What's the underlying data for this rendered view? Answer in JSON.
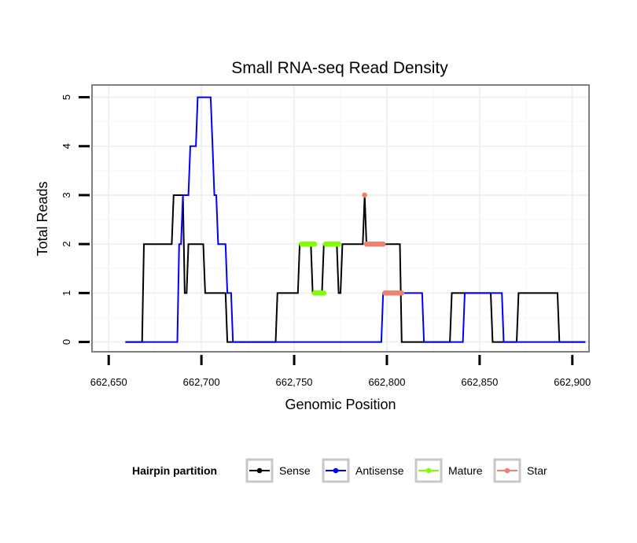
{
  "chart_data": {
    "type": "line",
    "title": "Small RNA-seq Read Density",
    "xlabel": "Genomic Position",
    "ylabel": "Total Reads",
    "xlim": [
      662641,
      662909
    ],
    "ylim": [
      -0.2,
      5.25
    ],
    "xticks": [
      662650,
      662700,
      662750,
      662800,
      662850,
      662900
    ],
    "xtick_labels": [
      "662,650",
      "662,700",
      "662,750",
      "662,800",
      "662,850",
      "662,900"
    ],
    "yticks": [
      0,
      1,
      2,
      3,
      4,
      5
    ],
    "ytick_labels": [
      "0",
      "1",
      "2",
      "3",
      "4",
      "5"
    ],
    "grid": true,
    "legend": {
      "title": "Hairpin partition",
      "placement": "bottom",
      "entries": [
        "Sense",
        "Antisense",
        "Mature",
        "Star"
      ]
    },
    "series": [
      {
        "name": "Sense",
        "color": "#000000",
        "x": [
          662659,
          662668,
          662669,
          662684,
          662685,
          662689,
          662690,
          662691,
          662692,
          662693,
          662694,
          662701,
          662702,
          662713,
          662714,
          662740,
          662741,
          662752,
          662753,
          662759,
          662760,
          662765,
          662766,
          662773,
          662774,
          662775,
          662776,
          662787,
          662788,
          662789,
          662790,
          662807,
          662808,
          662834,
          662835,
          662856,
          662857,
          662870,
          662871,
          662892,
          662893,
          662907
        ],
        "y": [
          0,
          0,
          2,
          2,
          3,
          3,
          3,
          1,
          1,
          2,
          2,
          2,
          1,
          1,
          0,
          0,
          1,
          1,
          2,
          2,
          1,
          1,
          2,
          2,
          1,
          1,
          2,
          2,
          3,
          2,
          2,
          2,
          0,
          0,
          1,
          1,
          0,
          0,
          1,
          1,
          0,
          0
        ]
      },
      {
        "name": "Antisense",
        "color": "#0000ff",
        "x": [
          662659,
          662687,
          662688,
          662689,
          662690,
          662691,
          662692,
          662693,
          662694,
          662695,
          662696,
          662697,
          662698,
          662699,
          662700,
          662705,
          662706,
          662707,
          662708,
          662709,
          662710,
          662713,
          662714,
          662716,
          662717,
          662720,
          662721,
          662797,
          662798,
          662819,
          662820,
          662841,
          662842,
          662862,
          662863,
          662907
        ],
        "y": [
          0,
          0,
          2,
          2,
          3,
          3,
          3,
          3,
          4,
          4,
          4,
          4,
          5,
          5,
          5,
          5,
          4,
          3,
          3,
          2,
          2,
          2,
          1,
          1,
          0,
          0,
          0,
          0,
          1,
          1,
          0,
          0,
          1,
          1,
          0,
          0
        ]
      },
      {
        "name": "Mature",
        "color": "#7fff00",
        "segments": [
          {
            "x": [
              662754,
              662761
            ],
            "y": 2
          },
          {
            "x": [
              662761,
              662766
            ],
            "y": 1
          },
          {
            "x": [
              662767,
              662774
            ],
            "y": 2
          }
        ]
      },
      {
        "name": "Star",
        "color": "#f08070",
        "segments": [
          {
            "x": [
              662788,
              662788
            ],
            "y": 3
          },
          {
            "x": [
              662789,
              662798
            ],
            "y": 2
          },
          {
            "x": [
              662799,
              662808
            ],
            "y": 1
          }
        ]
      }
    ]
  }
}
